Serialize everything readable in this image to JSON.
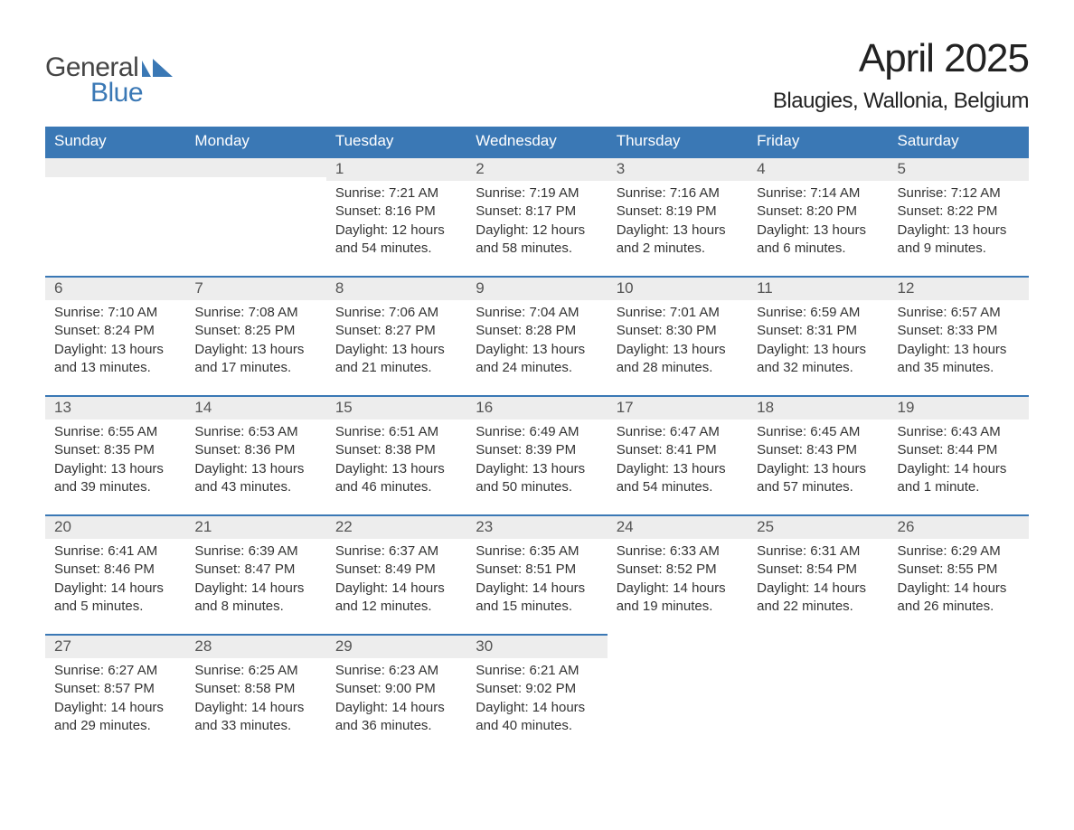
{
  "logo": {
    "general": "General",
    "blue": "Blue",
    "icon_color": "#3a78b5"
  },
  "title": "April 2025",
  "location": "Blaugies, Wallonia, Belgium",
  "colors": {
    "header_bg": "#3a78b5",
    "header_text": "#ffffff",
    "strip_bg": "#ededed",
    "strip_border": "#3a78b5",
    "text": "#333333",
    "daynum": "#555555"
  },
  "daynames": [
    "Sunday",
    "Monday",
    "Tuesday",
    "Wednesday",
    "Thursday",
    "Friday",
    "Saturday"
  ],
  "weeks": [
    [
      {
        "n": "",
        "sr": "",
        "ss": "",
        "dl": ""
      },
      {
        "n": "",
        "sr": "",
        "ss": "",
        "dl": ""
      },
      {
        "n": "1",
        "sr": "Sunrise: 7:21 AM",
        "ss": "Sunset: 8:16 PM",
        "dl": "Daylight: 12 hours and 54 minutes."
      },
      {
        "n": "2",
        "sr": "Sunrise: 7:19 AM",
        "ss": "Sunset: 8:17 PM",
        "dl": "Daylight: 12 hours and 58 minutes."
      },
      {
        "n": "3",
        "sr": "Sunrise: 7:16 AM",
        "ss": "Sunset: 8:19 PM",
        "dl": "Daylight: 13 hours and 2 minutes."
      },
      {
        "n": "4",
        "sr": "Sunrise: 7:14 AM",
        "ss": "Sunset: 8:20 PM",
        "dl": "Daylight: 13 hours and 6 minutes."
      },
      {
        "n": "5",
        "sr": "Sunrise: 7:12 AM",
        "ss": "Sunset: 8:22 PM",
        "dl": "Daylight: 13 hours and 9 minutes."
      }
    ],
    [
      {
        "n": "6",
        "sr": "Sunrise: 7:10 AM",
        "ss": "Sunset: 8:24 PM",
        "dl": "Daylight: 13 hours and 13 minutes."
      },
      {
        "n": "7",
        "sr": "Sunrise: 7:08 AM",
        "ss": "Sunset: 8:25 PM",
        "dl": "Daylight: 13 hours and 17 minutes."
      },
      {
        "n": "8",
        "sr": "Sunrise: 7:06 AM",
        "ss": "Sunset: 8:27 PM",
        "dl": "Daylight: 13 hours and 21 minutes."
      },
      {
        "n": "9",
        "sr": "Sunrise: 7:04 AM",
        "ss": "Sunset: 8:28 PM",
        "dl": "Daylight: 13 hours and 24 minutes."
      },
      {
        "n": "10",
        "sr": "Sunrise: 7:01 AM",
        "ss": "Sunset: 8:30 PM",
        "dl": "Daylight: 13 hours and 28 minutes."
      },
      {
        "n": "11",
        "sr": "Sunrise: 6:59 AM",
        "ss": "Sunset: 8:31 PM",
        "dl": "Daylight: 13 hours and 32 minutes."
      },
      {
        "n": "12",
        "sr": "Sunrise: 6:57 AM",
        "ss": "Sunset: 8:33 PM",
        "dl": "Daylight: 13 hours and 35 minutes."
      }
    ],
    [
      {
        "n": "13",
        "sr": "Sunrise: 6:55 AM",
        "ss": "Sunset: 8:35 PM",
        "dl": "Daylight: 13 hours and 39 minutes."
      },
      {
        "n": "14",
        "sr": "Sunrise: 6:53 AM",
        "ss": "Sunset: 8:36 PM",
        "dl": "Daylight: 13 hours and 43 minutes."
      },
      {
        "n": "15",
        "sr": "Sunrise: 6:51 AM",
        "ss": "Sunset: 8:38 PM",
        "dl": "Daylight: 13 hours and 46 minutes."
      },
      {
        "n": "16",
        "sr": "Sunrise: 6:49 AM",
        "ss": "Sunset: 8:39 PM",
        "dl": "Daylight: 13 hours and 50 minutes."
      },
      {
        "n": "17",
        "sr": "Sunrise: 6:47 AM",
        "ss": "Sunset: 8:41 PM",
        "dl": "Daylight: 13 hours and 54 minutes."
      },
      {
        "n": "18",
        "sr": "Sunrise: 6:45 AM",
        "ss": "Sunset: 8:43 PM",
        "dl": "Daylight: 13 hours and 57 minutes."
      },
      {
        "n": "19",
        "sr": "Sunrise: 6:43 AM",
        "ss": "Sunset: 8:44 PM",
        "dl": "Daylight: 14 hours and 1 minute."
      }
    ],
    [
      {
        "n": "20",
        "sr": "Sunrise: 6:41 AM",
        "ss": "Sunset: 8:46 PM",
        "dl": "Daylight: 14 hours and 5 minutes."
      },
      {
        "n": "21",
        "sr": "Sunrise: 6:39 AM",
        "ss": "Sunset: 8:47 PM",
        "dl": "Daylight: 14 hours and 8 minutes."
      },
      {
        "n": "22",
        "sr": "Sunrise: 6:37 AM",
        "ss": "Sunset: 8:49 PM",
        "dl": "Daylight: 14 hours and 12 minutes."
      },
      {
        "n": "23",
        "sr": "Sunrise: 6:35 AM",
        "ss": "Sunset: 8:51 PM",
        "dl": "Daylight: 14 hours and 15 minutes."
      },
      {
        "n": "24",
        "sr": "Sunrise: 6:33 AM",
        "ss": "Sunset: 8:52 PM",
        "dl": "Daylight: 14 hours and 19 minutes."
      },
      {
        "n": "25",
        "sr": "Sunrise: 6:31 AM",
        "ss": "Sunset: 8:54 PM",
        "dl": "Daylight: 14 hours and 22 minutes."
      },
      {
        "n": "26",
        "sr": "Sunrise: 6:29 AM",
        "ss": "Sunset: 8:55 PM",
        "dl": "Daylight: 14 hours and 26 minutes."
      }
    ],
    [
      {
        "n": "27",
        "sr": "Sunrise: 6:27 AM",
        "ss": "Sunset: 8:57 PM",
        "dl": "Daylight: 14 hours and 29 minutes."
      },
      {
        "n": "28",
        "sr": "Sunrise: 6:25 AM",
        "ss": "Sunset: 8:58 PM",
        "dl": "Daylight: 14 hours and 33 minutes."
      },
      {
        "n": "29",
        "sr": "Sunrise: 6:23 AM",
        "ss": "Sunset: 9:00 PM",
        "dl": "Daylight: 14 hours and 36 minutes."
      },
      {
        "n": "30",
        "sr": "Sunrise: 6:21 AM",
        "ss": "Sunset: 9:02 PM",
        "dl": "Daylight: 14 hours and 40 minutes."
      },
      {
        "n": "",
        "sr": "",
        "ss": "",
        "dl": ""
      },
      {
        "n": "",
        "sr": "",
        "ss": "",
        "dl": ""
      },
      {
        "n": "",
        "sr": "",
        "ss": "",
        "dl": ""
      }
    ]
  ]
}
